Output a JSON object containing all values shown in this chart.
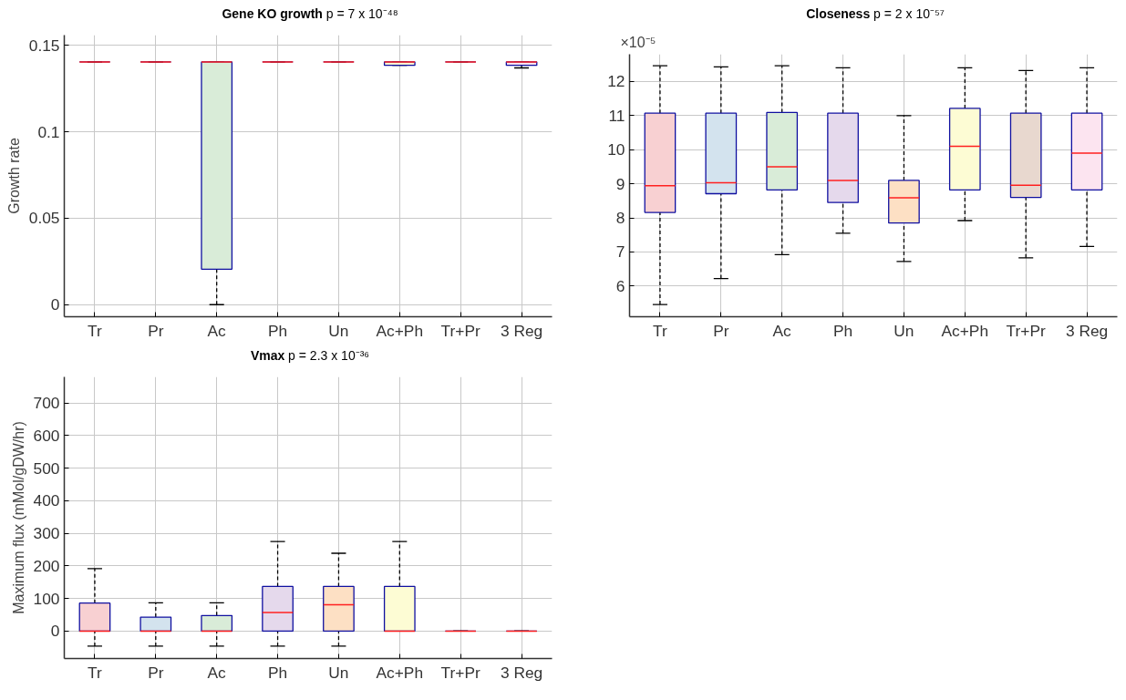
{
  "chart_data": [
    {
      "type": "box",
      "title": "Gene KO growth",
      "subtitle": "p = 7 x 10⁻⁴⁸",
      "ylabel": "Growth rate",
      "categories": [
        "Tr",
        "Pr",
        "Ac",
        "Ph",
        "Un",
        "Ac+Ph",
        "Tr+Pr",
        "3 Reg"
      ],
      "colors": [
        null,
        null,
        "#d9ecd8",
        null,
        null,
        "#fdfcd4",
        null,
        "#fce4f0"
      ],
      "boxes": [
        {
          "low": 0.1405,
          "q1": 0.1405,
          "median": 0.1405,
          "q3": 0.1405,
          "high": 0.1405
        },
        {
          "low": 0.1405,
          "q1": 0.1405,
          "median": 0.1405,
          "q3": 0.1405,
          "high": 0.1405
        },
        {
          "low": 0,
          "q1": 0.0205,
          "median": 0.1405,
          "q3": 0.1405,
          "high": 0.1405
        },
        {
          "low": 0.1405,
          "q1": 0.1405,
          "median": 0.1405,
          "q3": 0.1405,
          "high": 0.1405
        },
        {
          "low": 0.1405,
          "q1": 0.1405,
          "median": 0.1405,
          "q3": 0.1405,
          "high": 0.1405
        },
        {
          "low": 0.1385,
          "q1": 0.1385,
          "median": 0.1405,
          "q3": 0.1405,
          "high": 0.1405
        },
        {
          "low": 0.1405,
          "q1": 0.1405,
          "median": 0.1405,
          "q3": 0.1405,
          "high": 0.1405
        },
        {
          "low": 0.137,
          "q1": 0.1385,
          "median": 0.1405,
          "q3": 0.1405,
          "high": 0.1405
        }
      ],
      "ylim": [
        -0.007,
        0.156
      ],
      "yticks": [
        0,
        0.05,
        0.1,
        0.15
      ],
      "grid": true,
      "line_style": "dashed"
    },
    {
      "type": "box",
      "title": "Closeness",
      "subtitle": "p = 2 x 10⁻⁵⁷",
      "annotations": [
        "×10⁻⁵"
      ],
      "categories": [
        "Tr",
        "Pr",
        "Ac",
        "Ph",
        "Un",
        "Ac+Ph",
        "Tr+Pr",
        "3 Reg"
      ],
      "colors": [
        "#f8d0d2",
        "#d3e3ee",
        "#d9ecd8",
        "#e5d9ec",
        "#fde0c4",
        "#fdfcd4",
        "#e8d8cf",
        "#fce4f0"
      ],
      "boxes": [
        {
          "low": 5.46,
          "q1": 8.16,
          "median": 8.94,
          "q3": 11.07,
          "high": 12.46
        },
        {
          "low": 6.22,
          "q1": 8.71,
          "median": 9.03,
          "q3": 11.07,
          "high": 12.43
        },
        {
          "low": 6.92,
          "q1": 8.82,
          "median": 9.5,
          "q3": 11.09,
          "high": 12.46
        },
        {
          "low": 7.55,
          "q1": 8.45,
          "median": 9.1,
          "q3": 11.07,
          "high": 12.4
        },
        {
          "low": 6.72,
          "q1": 7.85,
          "median": 8.59,
          "q3": 9.1,
          "high": 11.0
        },
        {
          "low": 7.92,
          "q1": 8.82,
          "median": 10.1,
          "q3": 11.21,
          "high": 12.4
        },
        {
          "low": 6.83,
          "q1": 8.6,
          "median": 8.96,
          "q3": 11.07,
          "high": 12.32
        },
        {
          "low": 7.16,
          "q1": 8.82,
          "median": 9.9,
          "q3": 11.07,
          "high": 12.4
        }
      ],
      "ylim": [
        5.1,
        12.8
      ],
      "yticks": [
        6,
        7,
        8,
        9,
        10,
        11,
        12
      ],
      "grid": true,
      "line_style": "dashed"
    },
    {
      "type": "box",
      "title": "Vmax",
      "subtitle": "p = 2.3 x 10⁻³⁶",
      "ylabel": "Maximum flux (mMol/gDW/hr)",
      "categories": [
        "Tr",
        "Pr",
        "Ac",
        "Ph",
        "Un",
        "Ac+Ph",
        "Tr+Pr",
        "3 Reg"
      ],
      "colors": [
        "#f8d0d2",
        "#d3e3ee",
        "#d9ecd8",
        "#e5d9ec",
        "#fde0c4",
        "#fdfcd4",
        null,
        null
      ],
      "boxes": [
        {
          "low": -46,
          "q1": 0,
          "median": 0,
          "q3": 86,
          "high": 192
        },
        {
          "low": -46,
          "q1": 0,
          "median": 0,
          "q3": 43,
          "high": 87
        },
        {
          "low": -46,
          "q1": 0,
          "median": 0,
          "q3": 48,
          "high": 87
        },
        {
          "low": -46,
          "q1": 0,
          "median": 57,
          "q3": 137,
          "high": 275
        },
        {
          "low": -46,
          "q1": 0,
          "median": 81,
          "q3": 137,
          "high": 239
        },
        {
          "low": 0,
          "q1": 0,
          "median": 0,
          "q3": 137,
          "high": 275
        },
        {
          "low": 0,
          "q1": 0,
          "median": 0,
          "q3": 0,
          "high": 0
        },
        {
          "low": 0,
          "q1": 0,
          "median": 0,
          "q3": 0,
          "high": 0
        }
      ],
      "ylim": [
        -84,
        780
      ],
      "yticks": [
        0,
        100,
        200,
        300,
        400,
        500,
        600,
        700
      ],
      "grid": true,
      "line_style": "dashed"
    }
  ]
}
